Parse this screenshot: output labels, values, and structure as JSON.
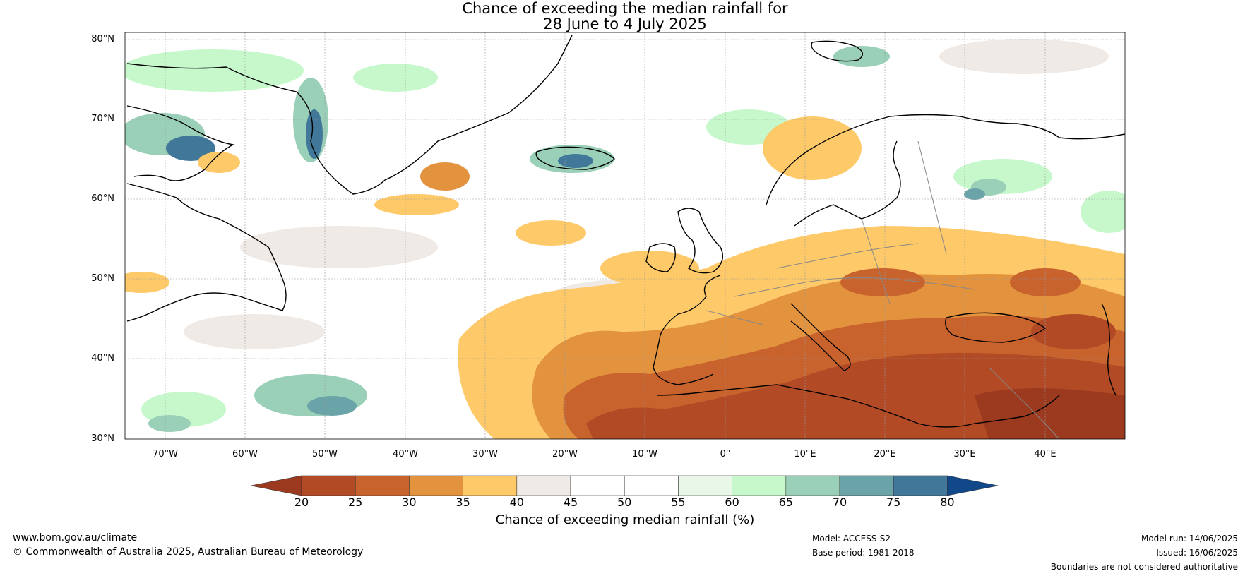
{
  "title": {
    "line1": "Chance of exceeding the median rainfall for",
    "line2": "28 June to 4 July 2025"
  },
  "map": {
    "lat_labels": [
      "80°N",
      "70°N",
      "60°N",
      "50°N",
      "40°N",
      "30°N"
    ],
    "lon_labels": [
      "70°W",
      "60°W",
      "50°W",
      "40°W",
      "30°W",
      "20°W",
      "10°W",
      "0°",
      "10°E",
      "20°E",
      "30°E",
      "40°E"
    ],
    "lat_range": [
      30,
      80
    ],
    "lon_range": [
      -75,
      50
    ],
    "gridlines": true,
    "regions_visible": [
      "Greenland",
      "Iceland",
      "Eastern Canada",
      "Europe",
      "North Africa",
      "Middle East",
      "North Atlantic"
    ]
  },
  "colorbar": {
    "ticks": [
      "20",
      "25",
      "30",
      "35",
      "40",
      "45",
      "50",
      "55",
      "60",
      "65",
      "70",
      "75",
      "80"
    ],
    "colors": [
      "#9c3a20",
      "#b24a25",
      "#c8632e",
      "#e3923e",
      "#fdc969",
      "#efeae5",
      "#ffffff",
      "#ffffff",
      "#e9f7e9",
      "#c6f8cc",
      "#9acfb8",
      "#6aa3a8",
      "#41789a",
      "#11488a"
    ],
    "label": "Chance of exceeding median rainfall (%)"
  },
  "footer": {
    "url": "www.bom.gov.au/climate",
    "copyright": "© Commonwealth of Australia 2025, Australian Bureau of Meteorology",
    "model": "Model: ACCESS-S2",
    "base_period": "Base period: 1981-2018",
    "model_run": "Model run: 14/06/2025",
    "issued": "Issued: 16/06/2025",
    "disclaimer": "Boundaries are not considered authoritative"
  }
}
